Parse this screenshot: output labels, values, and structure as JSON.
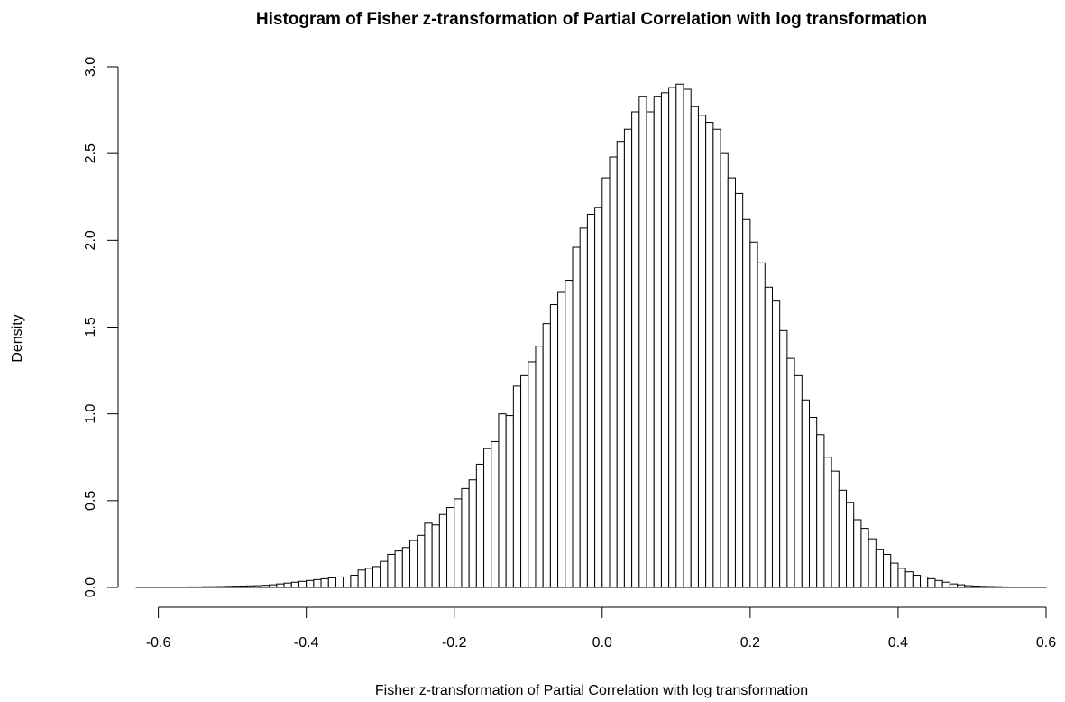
{
  "chart_data": {
    "type": "histogram",
    "title": "Histogram of Fisher z-transformation of Partial Correlation with log transformation",
    "x_label": "Fisher z-transformation of Partial Correlation with log transformation",
    "y_label": "Density",
    "bins": [
      -0.63,
      -0.62,
      -0.61,
      -0.6,
      -0.59,
      -0.58,
      -0.57,
      -0.56,
      -0.55,
      -0.54,
      -0.53,
      -0.52,
      -0.51,
      -0.5,
      -0.49,
      -0.48,
      -0.47,
      -0.46,
      -0.45,
      -0.44,
      -0.43,
      -0.42,
      -0.41,
      -0.4,
      -0.39,
      -0.38,
      -0.37,
      -0.36,
      -0.35,
      -0.34,
      -0.33,
      -0.32,
      -0.31,
      -0.3,
      -0.29,
      -0.28,
      -0.27,
      -0.26,
      -0.25,
      -0.24,
      -0.23,
      -0.22,
      -0.21,
      -0.2,
      -0.19,
      -0.18,
      -0.17,
      -0.16,
      -0.15,
      -0.14,
      -0.13,
      -0.12,
      -0.11,
      -0.1,
      -0.09,
      -0.08,
      -0.07,
      -0.06,
      -0.05,
      -0.04,
      -0.03,
      -0.02,
      -0.01,
      0,
      0.01,
      0.02,
      0.03,
      0.04,
      0.05,
      0.06,
      0.07,
      0.08,
      0.09,
      0.1,
      0.11,
      0.12,
      0.13,
      0.14,
      0.15,
      0.16,
      0.17,
      0.18,
      0.19,
      0.2,
      0.21,
      0.22,
      0.23,
      0.24,
      0.25,
      0.26,
      0.27,
      0.28,
      0.29,
      0.3,
      0.31,
      0.32,
      0.33,
      0.34,
      0.35,
      0.36,
      0.37,
      0.38,
      0.39,
      0.4,
      0.41,
      0.42,
      0.43,
      0.44,
      0.45,
      0.46,
      0.47,
      0.48,
      0.49,
      0.5,
      0.51,
      0.52,
      0.53,
      0.54,
      0.55,
      0.56,
      0.57,
      0.58,
      0.59,
      0.6
    ],
    "values": [
      0.001,
      0.001,
      0.001,
      0.001,
      0.002,
      0.002,
      0.002,
      0.003,
      0.003,
      0.004,
      0.004,
      0.005,
      0.006,
      0.007,
      0.008,
      0.009,
      0.01,
      0.012,
      0.015,
      0.02,
      0.025,
      0.03,
      0.035,
      0.04,
      0.045,
      0.05,
      0.055,
      0.06,
      0.06,
      0.07,
      0.1,
      0.11,
      0.12,
      0.15,
      0.19,
      0.21,
      0.23,
      0.27,
      0.3,
      0.37,
      0.36,
      0.42,
      0.46,
      0.51,
      0.57,
      0.62,
      0.71,
      0.8,
      0.84,
      1.0,
      0.99,
      1.16,
      1.22,
      1.3,
      1.39,
      1.52,
      1.63,
      1.7,
      1.77,
      1.96,
      2.07,
      2.15,
      2.19,
      2.36,
      2.48,
      2.57,
      2.64,
      2.74,
      2.83,
      2.74,
      2.83,
      2.85,
      2.88,
      2.9,
      2.87,
      2.77,
      2.72,
      2.68,
      2.64,
      2.5,
      2.36,
      2.27,
      2.12,
      1.99,
      1.87,
      1.73,
      1.65,
      1.48,
      1.32,
      1.22,
      1.08,
      0.98,
      0.88,
      0.75,
      0.67,
      0.56,
      0.49,
      0.39,
      0.34,
      0.28,
      0.22,
      0.19,
      0.14,
      0.11,
      0.09,
      0.07,
      0.06,
      0.05,
      0.04,
      0.03,
      0.02,
      0.015,
      0.01,
      0.008,
      0.006,
      0.005,
      0.004,
      0.003,
      0.002,
      0.002,
      0.001,
      0.001,
      0.001
    ],
    "color": "#ffffff",
    "xlim": [
      -0.63,
      0.6
    ],
    "ylim": [
      0,
      3
    ],
    "xticks": [
      -0.6,
      -0.4,
      -0.2,
      {
        "value": 0,
        "label": "0.0"
      },
      0.2,
      0.4,
      0.6
    ],
    "yticks": [
      {
        "value": 0,
        "label": "0.0"
      },
      0.5,
      {
        "value": 1,
        "label": "1.0"
      },
      1.5,
      {
        "value": 2,
        "label": "2.0"
      },
      2.5,
      {
        "value": 3,
        "label": "3.0"
      }
    ]
  }
}
